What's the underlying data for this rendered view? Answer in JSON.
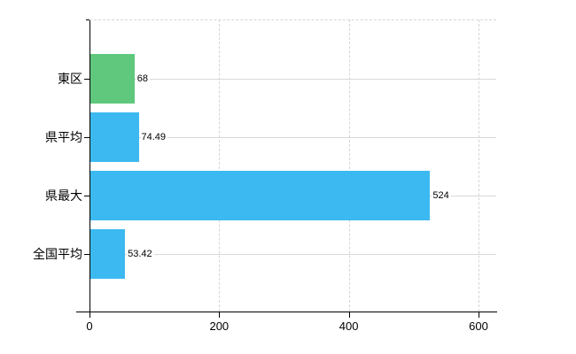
{
  "chart_data": {
    "type": "bar",
    "orientation": "horizontal",
    "title": "",
    "xlabel": "",
    "ylabel": "",
    "categories": [
      "東区",
      "県平均",
      "県最大",
      "全国平均"
    ],
    "values": [
      68,
      74.49,
      524,
      53.42
    ],
    "value_labels": [
      "68",
      "74.49",
      "524",
      "53.42"
    ],
    "bar_colors": [
      "#5fc87c",
      "#3db9f1",
      "#3db9f1",
      "#3db9f1"
    ],
    "x_ticks": [
      0,
      200,
      400,
      600
    ],
    "x_tick_labels": [
      "0",
      "200",
      "400",
      "600"
    ],
    "xlim": [
      0,
      627
    ],
    "grid": true,
    "legend": false,
    "colors": {
      "grid": "#d5d5d5",
      "axis": "#000000",
      "text": "#000000",
      "background": "#ffffff"
    }
  }
}
